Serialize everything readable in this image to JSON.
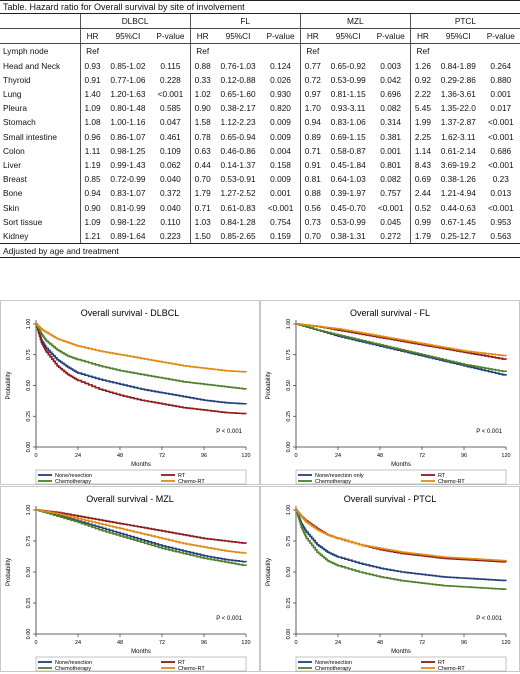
{
  "table": {
    "caption": "Table. Hazard ratio for Overall survival by site of involvement",
    "groups": [
      "DLBCL",
      "FL",
      "MZL",
      "PTCL"
    ],
    "subheaders": [
      "HR",
      "95%CI",
      "P-value"
    ],
    "rows": [
      {
        "site": "Lymph node",
        "cells": [
          "Ref",
          "",
          "",
          "Ref",
          "",
          "",
          "Ref",
          "",
          "",
          "Ref",
          "",
          ""
        ]
      },
      {
        "site": "Head and Neck",
        "cells": [
          "0.93",
          "0.85-1.02",
          "0.115",
          "0.88",
          "0.76-1.03",
          "0.124",
          "0.77",
          "0.65-0.92",
          "0.003",
          "1.26",
          "0.84-1.89",
          "0.264"
        ]
      },
      {
        "site": "Thyroid",
        "cells": [
          "0.91",
          "0.77-1.06",
          "0.228",
          "0.33",
          "0.12-0.88",
          "0.026",
          "0.72",
          "0.53-0.99",
          "0.042",
          "0.92",
          "0.29-2.86",
          "0.880"
        ]
      },
      {
        "site": "Lung",
        "cells": [
          "1.40",
          "1.20-1.63",
          "<0.001",
          "1.02",
          "0.65-1.60",
          "0.930",
          "0.97",
          "0.81-1.15",
          "0.696",
          "2.22",
          "1.36-3.61",
          "0.001"
        ]
      },
      {
        "site": "Pleura",
        "cells": [
          "1.09",
          "0.80-1.48",
          "0.585",
          "0.90",
          "0.38-2.17",
          "0.820",
          "1.70",
          "0.93-3.11",
          "0.082",
          "5.45",
          "1.35-22.0",
          "0.017"
        ]
      },
      {
        "site": "Stomach",
        "cells": [
          "1.08",
          "1.00-1.16",
          "0.047",
          "1.58",
          "1.12-2.23",
          "0.009",
          "0.94",
          "0.83-1.06",
          "0.314",
          "1.99",
          "1.37-2.87",
          "<0.001"
        ]
      },
      {
        "site": "Small intestine",
        "cells": [
          "0.96",
          "0.86-1.07",
          "0.461",
          "0.78",
          "0.65-0.94",
          "0.009",
          "0.89",
          "0.69-1.15",
          "0.381",
          "2.25",
          "1.62-3.11",
          "<0.001"
        ]
      },
      {
        "site": "Colon",
        "cells": [
          "1.11",
          "0.98-1.25",
          "0.109",
          "0.63",
          "0.46-0.86",
          "0.004",
          "0.71",
          "0.58-0.87",
          "0.001",
          "1.14",
          "0.61-2.14",
          "0.686"
        ]
      },
      {
        "site": "Liver",
        "cells": [
          "1.19",
          "0.99-1.43",
          "0.062",
          "0.44",
          "0.14-1.37",
          "0.158",
          "0.91",
          "0.45-1.84",
          "0.801",
          "8.43",
          "3.69-19.2",
          "<0.001"
        ]
      },
      {
        "site": "Breast",
        "cells": [
          "0.85",
          "0.72-0.99",
          "0.040",
          "0.70",
          "0.53-0.91",
          "0.009",
          "0.81",
          "0.64-1.03",
          "0.082",
          "0.69",
          "0.38-1.26",
          "0.23"
        ]
      },
      {
        "site": "Bone",
        "cells": [
          "0.94",
          "0.83-1.07",
          "0.372",
          "1.79",
          "1.27-2.52",
          "0.001",
          "0.88",
          "0.39-1.97",
          "0.757",
          "2.44",
          "1.21-4.94",
          "0.013"
        ]
      },
      {
        "site": "Skin",
        "cells": [
          "0.90",
          "0.81-0.99",
          "0.040",
          "0.71",
          "0.61-0.83",
          "<0.001",
          "0.56",
          "0.45-0.70",
          "<0.001",
          "0.52",
          "0.44-0.63",
          "<0.001"
        ]
      },
      {
        "site": "Sort tissue",
        "cells": [
          "1.09",
          "0.98-1.22",
          "0.110",
          "1.03",
          "0.84-1.28",
          "0.754",
          "0.73",
          "0.53-0.99",
          "0.045",
          "0.99",
          "0.67-1.45",
          "0.953"
        ]
      },
      {
        "site": "Kidney",
        "cells": [
          "1.21",
          "0.89-1.64",
          "0.223",
          "1.50",
          "0.85-2.65",
          "0.159",
          "0.70",
          "0.38-1.31",
          "0.272",
          "1.79",
          "0.25-12.7",
          "0.563"
        ]
      }
    ],
    "footnote": "Adjusted by age and treatment"
  },
  "colors": {
    "none": "#1f3f7a",
    "rt": "#8b1a1a",
    "chemo": "#4f7f2a",
    "chemort": "#e08a12"
  },
  "chart_data": [
    {
      "type": "line",
      "title": "Overall survival - DLBCL",
      "xlabel": "Months",
      "ylabel": "Probability",
      "xlim": [
        0,
        120
      ],
      "ylim": [
        0,
        1
      ],
      "xticks": [
        "0",
        "24",
        "48",
        "72",
        "96",
        "120"
      ],
      "yticks": [
        "0.00",
        "0.25",
        "0.50",
        "0.75",
        "1.00"
      ],
      "annotation": "P < 0.001",
      "legend": [
        "None/resection",
        "RT",
        "Chemotherapy",
        "Chemo-RT"
      ],
      "x": [
        0,
        3,
        6,
        12,
        18,
        24,
        36,
        48,
        60,
        72,
        84,
        96,
        108,
        120
      ],
      "series": [
        {
          "name": "None/resection",
          "color_key": "none",
          "values": [
            1.0,
            0.87,
            0.8,
            0.71,
            0.65,
            0.6,
            0.55,
            0.51,
            0.47,
            0.44,
            0.41,
            0.38,
            0.36,
            0.35
          ]
        },
        {
          "name": "RT",
          "color_key": "rt",
          "values": [
            1.0,
            0.85,
            0.77,
            0.66,
            0.59,
            0.54,
            0.47,
            0.42,
            0.38,
            0.35,
            0.32,
            0.3,
            0.28,
            0.27
          ]
        },
        {
          "name": "Chemotherapy",
          "color_key": "chemo",
          "values": [
            1.0,
            0.92,
            0.86,
            0.79,
            0.74,
            0.71,
            0.66,
            0.62,
            0.59,
            0.56,
            0.53,
            0.51,
            0.49,
            0.47
          ]
        },
        {
          "name": "Chemo-RT",
          "color_key": "chemort",
          "values": [
            1.0,
            0.96,
            0.93,
            0.88,
            0.85,
            0.82,
            0.78,
            0.75,
            0.72,
            0.69,
            0.66,
            0.64,
            0.62,
            0.61
          ]
        }
      ]
    },
    {
      "type": "line",
      "title": "Overall survival - FL",
      "xlabel": "Months",
      "ylabel": "Probability",
      "xlim": [
        0,
        120
      ],
      "ylim": [
        0,
        1
      ],
      "xticks": [
        "0",
        "24",
        "48",
        "72",
        "96",
        "120"
      ],
      "yticks": [
        "0.00",
        "0.25",
        "0.50",
        "0.75",
        "1.00"
      ],
      "annotation": "P < 0.001",
      "legend": [
        "None/resection only",
        "RT",
        "Chemotherapy",
        "Chemo-RT"
      ],
      "x": [
        0,
        12,
        24,
        36,
        48,
        60,
        72,
        84,
        96,
        108,
        120
      ],
      "series": [
        {
          "name": "None/resection only",
          "color_key": "none",
          "values": [
            1.0,
            0.95,
            0.9,
            0.86,
            0.82,
            0.78,
            0.74,
            0.7,
            0.66,
            0.62,
            0.58
          ]
        },
        {
          "name": "RT",
          "color_key": "rt",
          "values": [
            1.0,
            0.98,
            0.95,
            0.92,
            0.89,
            0.86,
            0.83,
            0.8,
            0.77,
            0.74,
            0.71
          ]
        },
        {
          "name": "Chemotherapy",
          "color_key": "chemo",
          "values": [
            1.0,
            0.95,
            0.91,
            0.87,
            0.83,
            0.79,
            0.75,
            0.71,
            0.67,
            0.64,
            0.61
          ]
        },
        {
          "name": "Chemo-RT",
          "color_key": "chemort",
          "values": [
            1.0,
            0.98,
            0.96,
            0.93,
            0.9,
            0.87,
            0.84,
            0.81,
            0.78,
            0.76,
            0.74
          ]
        }
      ]
    },
    {
      "type": "line",
      "title": "Overall survival - MZL",
      "xlabel": "Months",
      "ylabel": "Probability",
      "xlim": [
        0,
        120
      ],
      "ylim": [
        0,
        1
      ],
      "xticks": [
        "0",
        "24",
        "48",
        "72",
        "96",
        "120"
      ],
      "yticks": [
        "0.00",
        "0.25",
        "0.50",
        "0.75",
        "1.00"
      ],
      "annotation": "P < 0.001",
      "legend": [
        "None/resection",
        "RT",
        "Chemotherapy",
        "Chemo-RT"
      ],
      "x": [
        0,
        12,
        24,
        36,
        48,
        60,
        72,
        84,
        96,
        108,
        120
      ],
      "series": [
        {
          "name": "None/resection",
          "color_key": "none",
          "values": [
            1.0,
            0.96,
            0.91,
            0.86,
            0.81,
            0.76,
            0.71,
            0.67,
            0.63,
            0.6,
            0.58
          ]
        },
        {
          "name": "RT",
          "color_key": "rt",
          "values": [
            1.0,
            0.98,
            0.95,
            0.92,
            0.89,
            0.86,
            0.83,
            0.8,
            0.77,
            0.75,
            0.73
          ]
        },
        {
          "name": "Chemotherapy",
          "color_key": "chemo",
          "values": [
            1.0,
            0.95,
            0.9,
            0.84,
            0.79,
            0.74,
            0.69,
            0.65,
            0.61,
            0.58,
            0.55
          ]
        },
        {
          "name": "Chemo-RT",
          "color_key": "chemort",
          "values": [
            1.0,
            0.97,
            0.93,
            0.89,
            0.85,
            0.81,
            0.77,
            0.73,
            0.7,
            0.67,
            0.65
          ]
        }
      ]
    },
    {
      "type": "line",
      "title": "Overall survival - PTCL",
      "xlabel": "Months",
      "ylabel": "Probability",
      "xlim": [
        0,
        120
      ],
      "ylim": [
        0,
        1
      ],
      "xticks": [
        "0",
        "24",
        "48",
        "72",
        "96",
        "120"
      ],
      "yticks": [
        "0.00",
        "0.25",
        "0.50",
        "0.75",
        "1.00"
      ],
      "annotation": "P < 0.001",
      "legend": [
        "None/resection",
        "RT",
        "Chemotherapy",
        "Chemo-RT"
      ],
      "x": [
        0,
        3,
        6,
        12,
        18,
        24,
        36,
        48,
        60,
        72,
        84,
        96,
        108,
        120
      ],
      "series": [
        {
          "name": "None/resection",
          "color_key": "none",
          "values": [
            1.0,
            0.89,
            0.82,
            0.72,
            0.66,
            0.62,
            0.57,
            0.53,
            0.5,
            0.48,
            0.46,
            0.45,
            0.44,
            0.43
          ]
        },
        {
          "name": "RT",
          "color_key": "rt",
          "values": [
            1.0,
            0.95,
            0.91,
            0.85,
            0.8,
            0.77,
            0.72,
            0.68,
            0.65,
            0.63,
            0.61,
            0.6,
            0.59,
            0.58
          ]
        },
        {
          "name": "Chemotherapy",
          "color_key": "chemo",
          "values": [
            1.0,
            0.86,
            0.77,
            0.66,
            0.59,
            0.55,
            0.5,
            0.46,
            0.43,
            0.41,
            0.39,
            0.38,
            0.37,
            0.36
          ]
        },
        {
          "name": "Chemo-RT",
          "color_key": "chemort",
          "values": [
            1.0,
            0.95,
            0.9,
            0.84,
            0.8,
            0.77,
            0.72,
            0.69,
            0.66,
            0.64,
            0.62,
            0.61,
            0.6,
            0.59
          ]
        }
      ]
    }
  ]
}
